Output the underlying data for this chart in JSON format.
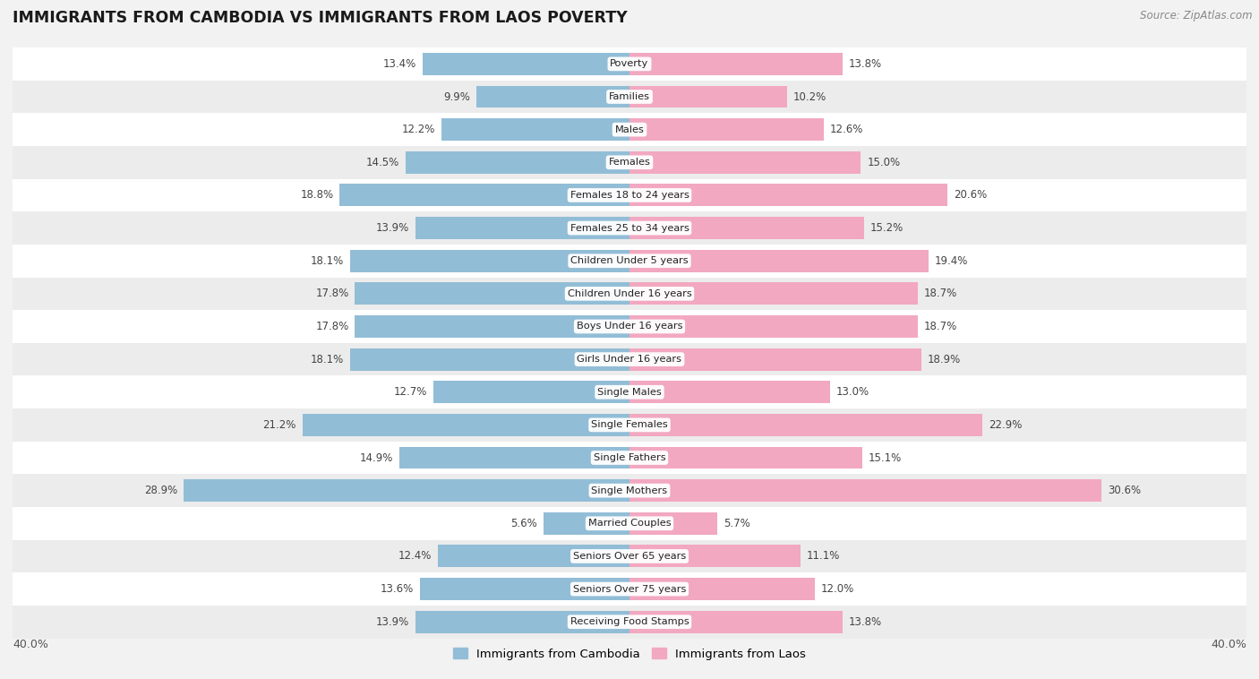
{
  "title": "IMMIGRANTS FROM CAMBODIA VS IMMIGRANTS FROM LAOS POVERTY",
  "source": "Source: ZipAtlas.com",
  "categories": [
    "Poverty",
    "Families",
    "Males",
    "Females",
    "Females 18 to 24 years",
    "Females 25 to 34 years",
    "Children Under 5 years",
    "Children Under 16 years",
    "Boys Under 16 years",
    "Girls Under 16 years",
    "Single Males",
    "Single Females",
    "Single Fathers",
    "Single Mothers",
    "Married Couples",
    "Seniors Over 65 years",
    "Seniors Over 75 years",
    "Receiving Food Stamps"
  ],
  "cambodia_values": [
    13.4,
    9.9,
    12.2,
    14.5,
    18.8,
    13.9,
    18.1,
    17.8,
    17.8,
    18.1,
    12.7,
    21.2,
    14.9,
    28.9,
    5.6,
    12.4,
    13.6,
    13.9
  ],
  "laos_values": [
    13.8,
    10.2,
    12.6,
    15.0,
    20.6,
    15.2,
    19.4,
    18.7,
    18.7,
    18.9,
    13.0,
    22.9,
    15.1,
    30.6,
    5.7,
    11.1,
    12.0,
    13.8
  ],
  "cambodia_color": "#92bdd6",
  "laos_color": "#f2a8c0",
  "background_color_light": "#f0f0f0",
  "background_color_dark": "#e4e4e4",
  "row_color_even": "#f7f7f7",
  "row_color_odd": "#ebebeb",
  "xlim": 40.0,
  "legend_label_cambodia": "Immigrants from Cambodia",
  "legend_label_laos": "Immigrants from Laos"
}
